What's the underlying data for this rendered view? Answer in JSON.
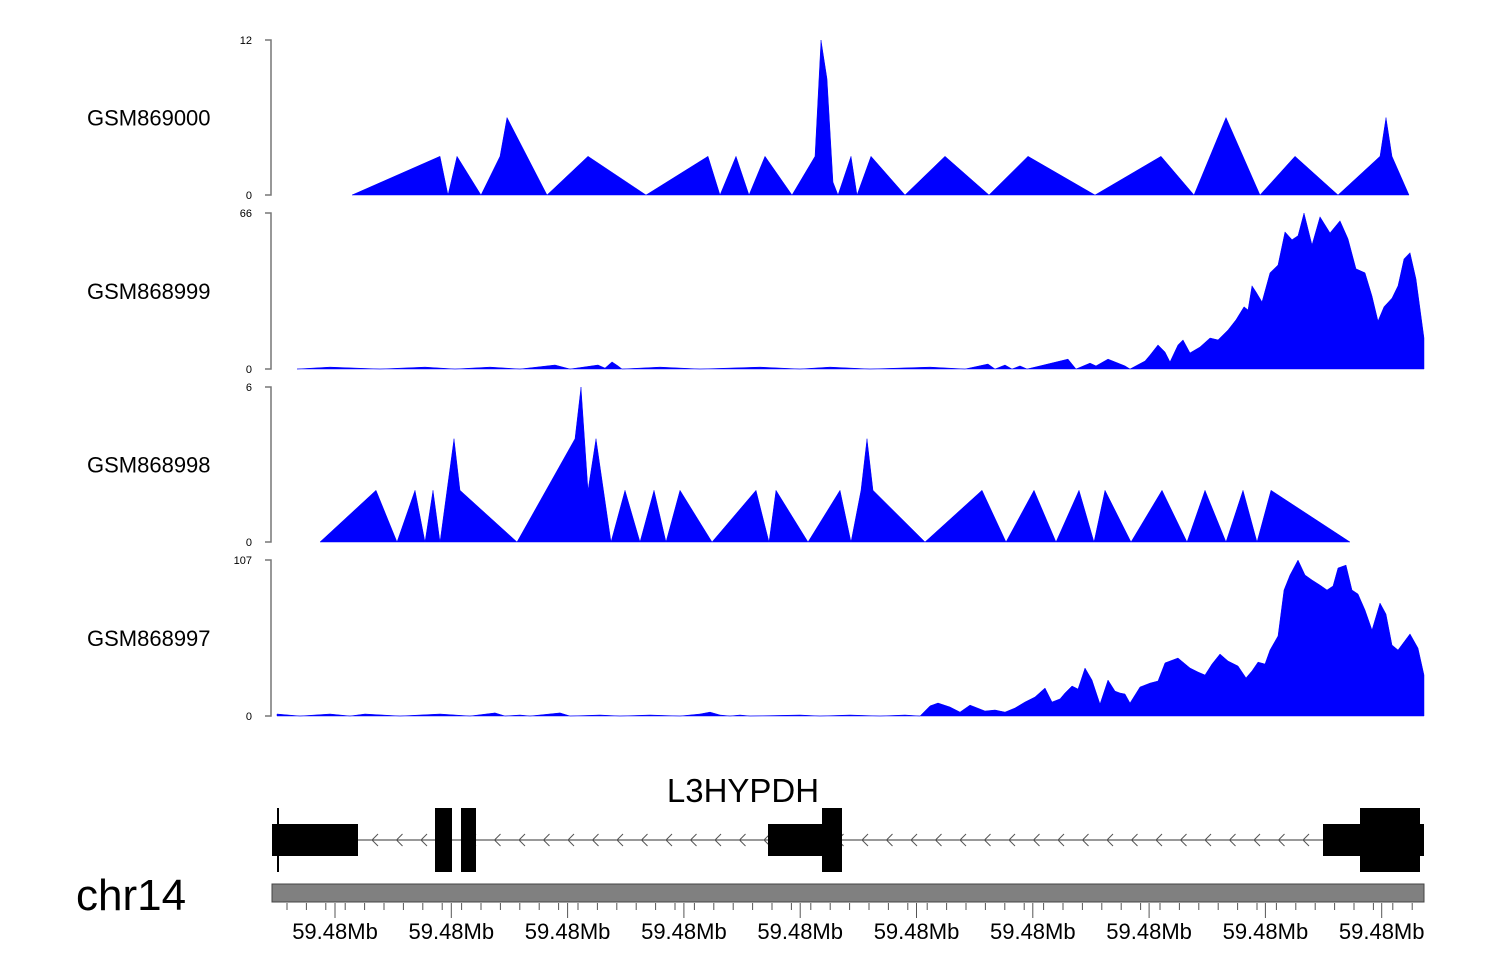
{
  "chart_data": {
    "type": "area",
    "x_unit": "relative position (arbitrary units across region)",
    "x_range": [
      0,
      1152
    ],
    "fill_color": "#0000ff",
    "chromosome": "chr14",
    "tracks": [
      {
        "name": "GSM869000",
        "ylim": [
          0,
          12
        ],
        "ticks": [
          "0",
          "12"
        ],
        "points": [
          [
            80,
            0
          ],
          [
            168,
            3
          ],
          [
            176,
            0
          ],
          [
            185,
            3
          ],
          [
            209,
            0
          ],
          [
            228,
            3
          ],
          [
            235,
            6
          ],
          [
            275,
            0
          ],
          [
            316,
            3
          ],
          [
            374,
            0
          ],
          [
            436,
            3
          ],
          [
            448,
            0
          ],
          [
            464,
            3
          ],
          [
            477,
            0
          ],
          [
            493,
            3
          ],
          [
            520,
            0
          ],
          [
            543,
            3
          ],
          [
            549,
            12
          ],
          [
            555,
            9
          ],
          [
            561,
            1
          ],
          [
            566,
            0
          ],
          [
            579,
            3
          ],
          [
            585,
            0
          ],
          [
            599,
            3
          ],
          [
            633,
            0
          ],
          [
            673,
            3
          ],
          [
            717,
            0
          ],
          [
            756,
            3
          ],
          [
            823,
            0
          ],
          [
            889,
            3
          ],
          [
            922,
            0
          ],
          [
            954,
            6
          ],
          [
            988,
            0
          ],
          [
            1023,
            3
          ],
          [
            1066,
            0
          ],
          [
            1108,
            3
          ],
          [
            1114,
            6
          ],
          [
            1120,
            3
          ],
          [
            1137,
            0
          ]
        ]
      },
      {
        "name": "GSM868999",
        "ylim": [
          0,
          66
        ],
        "ticks": [
          "0",
          "66"
        ],
        "points": [
          [
            25,
            0
          ],
          [
            58,
            0.8
          ],
          [
            108,
            0
          ],
          [
            153,
            0.8
          ],
          [
            183,
            0
          ],
          [
            218,
            0.8
          ],
          [
            248,
            0
          ],
          [
            283,
            1.7
          ],
          [
            298,
            0
          ],
          [
            326,
            1.7
          ],
          [
            333,
            0.4
          ],
          [
            340,
            3
          ],
          [
            346,
            1.3
          ],
          [
            350,
            0
          ],
          [
            388,
            0.8
          ],
          [
            428,
            0
          ],
          [
            488,
            0.8
          ],
          [
            528,
            0
          ],
          [
            558,
            0.8
          ],
          [
            598,
            0
          ],
          [
            658,
            0.8
          ],
          [
            693,
            0
          ],
          [
            716,
            2.1
          ],
          [
            723,
            0
          ],
          [
            733,
            1.7
          ],
          [
            740,
            0
          ],
          [
            748,
            1.3
          ],
          [
            755,
            0
          ],
          [
            768,
            1.3
          ],
          [
            796,
            4.2
          ],
          [
            804,
            0
          ],
          [
            818,
            2.5
          ],
          [
            824,
            1.3
          ],
          [
            836,
            4.2
          ],
          [
            853,
            1.3
          ],
          [
            858,
            0
          ],
          [
            873,
            3.4
          ],
          [
            878,
            5.9
          ],
          [
            886,
            10.2
          ],
          [
            893,
            7.2
          ],
          [
            898,
            3
          ],
          [
            906,
            10.2
          ],
          [
            911,
            12.3
          ],
          [
            918,
            6.8
          ],
          [
            928,
            9.3
          ],
          [
            938,
            13.1
          ],
          [
            946,
            12.3
          ],
          [
            956,
            16.5
          ],
          [
            964,
            20.8
          ],
          [
            972,
            26.3
          ],
          [
            976,
            25
          ],
          [
            980,
            35.2
          ],
          [
            984,
            32.6
          ],
          [
            990,
            28.4
          ],
          [
            998,
            40.7
          ],
          [
            1006,
            44
          ],
          [
            1013,
            58
          ],
          [
            1020,
            54.7
          ],
          [
            1026,
            56.4
          ],
          [
            1032,
            66
          ],
          [
            1040,
            52.5
          ],
          [
            1048,
            64.4
          ],
          [
            1058,
            57.6
          ],
          [
            1068,
            62.7
          ],
          [
            1076,
            55.1
          ],
          [
            1084,
            42.4
          ],
          [
            1093,
            40.7
          ],
          [
            1100,
            30.9
          ],
          [
            1106,
            20.3
          ],
          [
            1112,
            26.3
          ],
          [
            1120,
            30
          ],
          [
            1126,
            35.2
          ],
          [
            1132,
            46.6
          ],
          [
            1138,
            49.2
          ],
          [
            1144,
            38.1
          ],
          [
            1152,
            13.1
          ]
        ]
      },
      {
        "name": "GSM868998",
        "ylim": [
          0,
          6
        ],
        "ticks": [
          "0",
          "6"
        ],
        "points": [
          [
            48,
            0
          ],
          [
            104,
            2
          ],
          [
            125,
            0
          ],
          [
            143,
            2
          ],
          [
            153,
            0
          ],
          [
            161,
            2
          ],
          [
            168,
            0
          ],
          [
            182,
            4
          ],
          [
            188,
            2
          ],
          [
            245,
            0
          ],
          [
            303,
            4
          ],
          [
            309,
            6
          ],
          [
            316,
            2
          ],
          [
            324,
            4
          ],
          [
            339,
            0
          ],
          [
            353,
            2
          ],
          [
            368,
            0
          ],
          [
            382,
            2
          ],
          [
            394,
            0
          ],
          [
            408,
            2
          ],
          [
            440,
            0
          ],
          [
            484,
            2
          ],
          [
            497,
            0
          ],
          [
            504,
            2
          ],
          [
            536,
            0
          ],
          [
            568,
            2
          ],
          [
            579,
            0
          ],
          [
            589,
            2
          ],
          [
            595,
            4
          ],
          [
            601,
            2
          ],
          [
            653,
            0
          ],
          [
            710,
            2
          ],
          [
            734,
            0
          ],
          [
            762,
            2
          ],
          [
            784,
            0
          ],
          [
            807,
            2
          ],
          [
            822,
            0
          ],
          [
            833,
            2
          ],
          [
            859,
            0
          ],
          [
            890,
            2
          ],
          [
            915,
            0
          ],
          [
            933,
            2
          ],
          [
            954,
            0
          ],
          [
            971,
            2
          ],
          [
            985,
            0
          ],
          [
            999,
            2
          ],
          [
            1078,
            0
          ]
        ]
      },
      {
        "name": "GSM868997",
        "ylim": [
          0,
          107
        ],
        "ticks": [
          "0",
          "107"
        ],
        "points": [
          [
            5,
            1.4
          ],
          [
            28,
            0
          ],
          [
            58,
            1.4
          ],
          [
            78,
            0
          ],
          [
            93,
            1.4
          ],
          [
            128,
            0
          ],
          [
            168,
            1.4
          ],
          [
            198,
            0
          ],
          [
            223,
            2.1
          ],
          [
            233,
            0
          ],
          [
            248,
            0.7
          ],
          [
            258,
            0
          ],
          [
            288,
            2.1
          ],
          [
            298,
            0
          ],
          [
            328,
            0.7
          ],
          [
            348,
            0
          ],
          [
            378,
            0.7
          ],
          [
            408,
            0
          ],
          [
            428,
            1.4
          ],
          [
            438,
            2.7
          ],
          [
            448,
            0.7
          ],
          [
            458,
            0
          ],
          [
            468,
            0.7
          ],
          [
            478,
            0
          ],
          [
            528,
            0.7
          ],
          [
            548,
            0
          ],
          [
            578,
            0.7
          ],
          [
            608,
            0
          ],
          [
            633,
            0.7
          ],
          [
            648,
            0
          ],
          [
            658,
            6.9
          ],
          [
            666,
            8.9
          ],
          [
            678,
            6.2
          ],
          [
            688,
            2.7
          ],
          [
            698,
            7.5
          ],
          [
            713,
            3.4
          ],
          [
            723,
            4.1
          ],
          [
            733,
            2.7
          ],
          [
            743,
            5.5
          ],
          [
            753,
            9.6
          ],
          [
            763,
            13
          ],
          [
            773,
            19.2
          ],
          [
            780,
            9.6
          ],
          [
            788,
            11.7
          ],
          [
            793,
            15.8
          ],
          [
            800,
            20.6
          ],
          [
            806,
            18.5
          ],
          [
            813,
            32.9
          ],
          [
            820,
            24.7
          ],
          [
            828,
            8.2
          ],
          [
            836,
            24.7
          ],
          [
            843,
            17.1
          ],
          [
            848,
            15.8
          ],
          [
            853,
            15.1
          ],
          [
            858,
            8.9
          ],
          [
            868,
            19.9
          ],
          [
            878,
            22.6
          ],
          [
            886,
            24
          ],
          [
            893,
            36.4
          ],
          [
            906,
            39.8
          ],
          [
            918,
            32.9
          ],
          [
            926,
            30.2
          ],
          [
            933,
            28.1
          ],
          [
            940,
            35.7
          ],
          [
            948,
            42.5
          ],
          [
            956,
            37.7
          ],
          [
            966,
            34.3
          ],
          [
            974,
            26.1
          ],
          [
            980,
            30.9
          ],
          [
            986,
            37
          ],
          [
            993,
            35.7
          ],
          [
            998,
            45.3
          ],
          [
            1006,
            54.9
          ],
          [
            1012,
            86.4
          ],
          [
            1018,
            96.7
          ],
          [
            1026,
            107
          ],
          [
            1033,
            96.7
          ],
          [
            1040,
            93.3
          ],
          [
            1048,
            89.8
          ],
          [
            1055,
            86.4
          ],
          [
            1061,
            89.2
          ],
          [
            1066,
            101.5
          ],
          [
            1074,
            103.5
          ],
          [
            1080,
            86.4
          ],
          [
            1086,
            83.7
          ],
          [
            1093,
            72.7
          ],
          [
            1100,
            59
          ],
          [
            1108,
            77.5
          ],
          [
            1114,
            69.9
          ],
          [
            1120,
            48.7
          ],
          [
            1126,
            45.3
          ],
          [
            1138,
            56.3
          ],
          [
            1146,
            46.6
          ],
          [
            1152,
            28.1
          ]
        ]
      }
    ],
    "gene": {
      "name": "L3HYPDH",
      "strand": "-",
      "utr": [
        [
          0,
          86
        ],
        [
          496,
          550
        ],
        [
          1051,
          1088
        ],
        [
          1148,
          1152
        ]
      ],
      "cds": [
        [
          163,
          180
        ],
        [
          189,
          204
        ],
        [
          550,
          570
        ],
        [
          1088,
          1148
        ]
      ]
    },
    "x_axis": {
      "tick_labels": [
        "59.48Mb",
        "59.48Mb",
        "59.48Mb",
        "59.48Mb",
        "59.48Mb",
        "59.48Mb",
        "59.48Mb",
        "59.48Mb",
        "59.48Mb",
        "59.48Mb"
      ]
    }
  }
}
